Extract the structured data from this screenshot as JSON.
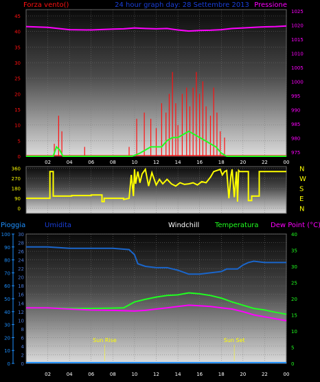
{
  "colors": {
    "red": "#ff1010",
    "green": "#20ff20",
    "magenta": "#ff00ff",
    "blue": "#1a66cc",
    "yellow": "#ffff00",
    "white": "#ffffff",
    "pioggia": "#1e90ff"
  },
  "chart_data": [
    {
      "type": "line",
      "panel": "wind-pressure",
      "header": {
        "left": "Forza vento()",
        "center": "24 hour graph day: 28 Settembre 2013",
        "right": "Pressione"
      },
      "x_tick_labels": [
        "02",
        "04",
        "06",
        "08",
        "10",
        "12",
        "14",
        "16",
        "18",
        "20",
        "22",
        "00"
      ],
      "y_left": {
        "ticks": [
          "0",
          "5",
          "10",
          "15",
          "20",
          "25",
          "30",
          "35",
          "40",
          "45"
        ],
        "range": [
          0,
          47
        ]
      },
      "y_right": {
        "ticks": [
          "975",
          "980",
          "985",
          "990",
          "995",
          "1000",
          "1005",
          "1010",
          "1015",
          "1020",
          "1025"
        ],
        "range": [
          973.5,
          1025.5
        ]
      },
      "x_range": [
        0,
        24
      ],
      "series": [
        {
          "color": "red",
          "axis": "left",
          "style": "bars",
          "x": [
            2.6,
            3.0,
            3.3,
            5.4,
            9.5,
            10.2,
            10.9,
            11.5,
            12.0,
            12.5,
            12.9,
            13.2,
            13.5,
            13.8,
            14.0,
            14.4,
            14.8,
            15.1,
            15.4,
            15.7,
            16.0,
            16.3,
            16.6,
            17.0,
            17.3,
            17.6,
            17.9,
            18.3
          ],
          "y": [
            4,
            13,
            8,
            3,
            3,
            12,
            14,
            12,
            9,
            17,
            14,
            20,
            27,
            17,
            10,
            20,
            22,
            16,
            22,
            27,
            20,
            24,
            16,
            13,
            22,
            14,
            8,
            6
          ]
        },
        {
          "color": "green",
          "axis": "left",
          "x": [
            0,
            2.5,
            2.8,
            3.1,
            3.4,
            9.8,
            10.5,
            11.5,
            12.5,
            13.0,
            13.5,
            14.0,
            14.5,
            15.0,
            15.5,
            16.0,
            16.5,
            17.0,
            17.5,
            18.0,
            18.5,
            19.0,
            24
          ],
          "y": [
            0,
            0,
            3,
            2,
            0,
            0,
            1,
            3,
            3,
            5,
            6,
            6,
            7,
            8,
            7,
            6,
            5,
            4,
            3,
            1,
            0,
            0,
            0
          ]
        },
        {
          "color": "magenta",
          "axis": "right",
          "x": [
            0,
            2,
            4,
            6,
            8,
            9,
            10,
            11,
            12,
            13,
            14,
            15,
            16,
            17,
            18,
            19,
            20,
            21,
            22,
            23,
            24
          ],
          "y": [
            1019.5,
            1019.2,
            1018.4,
            1018.3,
            1018.6,
            1018.7,
            1019.0,
            1018.8,
            1018.7,
            1018.8,
            1018.3,
            1017.9,
            1018.1,
            1018.2,
            1018.4,
            1018.8,
            1019.0,
            1019.2,
            1019.4,
            1019.5,
            1019.7
          ]
        }
      ]
    },
    {
      "type": "line",
      "panel": "wind-direction",
      "y_left": {
        "ticks": [
          "0",
          "90",
          "180",
          "270",
          "360"
        ],
        "range": [
          -45,
          375
        ]
      },
      "y_right": {
        "ticks": [
          "N",
          "E",
          "S",
          "W",
          "N"
        ]
      },
      "x_range": [
        0,
        24
      ],
      "series": [
        {
          "color": "yellow",
          "x": [
            0,
            2.2,
            2.2,
            2.5,
            2.5,
            4.2,
            4.2,
            6.0,
            6.0,
            7.0,
            7.0,
            7.2,
            7.2,
            9.0,
            9.0,
            9.5,
            9.7,
            9.9,
            10.0,
            10.1,
            10.3,
            10.5,
            10.7,
            11.0,
            11.3,
            11.6,
            12.0,
            12.3,
            12.6,
            13.0,
            13.4,
            13.8,
            14.2,
            14.6,
            15.0,
            15.4,
            15.8,
            16.2,
            16.6,
            17.0,
            17.3,
            17.6,
            17.9,
            18.1,
            18.3,
            18.5,
            18.7,
            18.9,
            19.0,
            19.2,
            19.4,
            19.5,
            19.6,
            19.7,
            20.5,
            20.5,
            20.8,
            20.8,
            21.5,
            21.5,
            24
          ],
          "y": [
            90,
            90,
            330,
            330,
            110,
            110,
            115,
            115,
            120,
            120,
            60,
            60,
            90,
            90,
            80,
            90,
            300,
            110,
            350,
            220,
            330,
            230,
            310,
            350,
            200,
            320,
            210,
            260,
            220,
            260,
            220,
            200,
            230,
            215,
            220,
            230,
            210,
            240,
            230,
            280,
            330,
            340,
            350,
            300,
            330,
            340,
            90,
            300,
            350,
            100,
            330,
            60,
            340,
            330,
            330,
            70,
            70,
            110,
            110,
            330,
            330
          ]
        }
      ]
    },
    {
      "type": "line",
      "panel": "temp-humidity",
      "header": {
        "pioggia": "Pioggia",
        "umidita": "Umidita",
        "windchill": "Windchill",
        "temperatura": "Temperatura",
        "dewpoint": "Dew Point (°C)"
      },
      "annotations": [
        {
          "label": "Sun Rise",
          "x": 7.25
        },
        {
          "label": "Sun Set",
          "x": 19.2
        }
      ],
      "x_tick_labels": [
        "02",
        "04",
        "06",
        "08",
        "10",
        "12",
        "14",
        "16",
        "18",
        "20",
        "22",
        "00"
      ],
      "y_outer": {
        "ticks": [
          "0",
          "10",
          "20",
          "30",
          "40",
          "50",
          "60",
          "70",
          "80",
          "90",
          "100"
        ],
        "range": [
          0,
          100
        ]
      },
      "y_inner": {
        "ticks": [
          "0",
          "2",
          "4",
          "6",
          "8",
          "10",
          "12",
          "14",
          "16",
          "18",
          "20",
          "22",
          "24",
          "26",
          "28",
          "30"
        ],
        "range": [
          0,
          30
        ]
      },
      "y_right": {
        "ticks": [
          "0",
          "5",
          "10",
          "15",
          "20",
          "25",
          "30",
          "35",
          "40"
        ],
        "range": [
          0,
          40
        ]
      },
      "x_range": [
        0,
        24
      ],
      "series": [
        {
          "color": "blue",
          "axis": "outer",
          "label": "umidita",
          "x": [
            0,
            2,
            4,
            6,
            8,
            9.5,
            10,
            10.3,
            11,
            12,
            13,
            14,
            15,
            16,
            17,
            18,
            18.5,
            19.5,
            20,
            20.5,
            21,
            22,
            23,
            24
          ],
          "y": [
            90,
            90,
            89,
            89,
            89,
            88,
            84,
            77,
            75,
            74,
            74,
            72,
            69,
            69,
            70,
            71,
            73,
            73,
            76,
            78,
            79,
            78,
            78,
            78
          ]
        },
        {
          "color": "green",
          "axis": "right",
          "label": "temperatura",
          "x": [
            0,
            2,
            4,
            6,
            8,
            9,
            10,
            11,
            12,
            13,
            14,
            15,
            16,
            17,
            18,
            19,
            20,
            21,
            22,
            23,
            24
          ],
          "y": [
            17.2,
            17.2,
            17.0,
            17.0,
            17.1,
            17.2,
            19.0,
            19.8,
            20.5,
            21.0,
            21.2,
            21.8,
            21.5,
            21.0,
            20.2,
            19.0,
            18.0,
            17.0,
            16.5,
            15.8,
            15.2
          ]
        },
        {
          "color": "magenta",
          "axis": "right",
          "label": "dew-point",
          "x": [
            0,
            2,
            4,
            6,
            8,
            9,
            10,
            11,
            12,
            13,
            14,
            15,
            16,
            17,
            18,
            19,
            20,
            21,
            22,
            23,
            24
          ],
          "y": [
            17.2,
            17.2,
            16.8,
            16.5,
            16.4,
            16.3,
            16.2,
            16.4,
            16.8,
            17.2,
            17.6,
            18.0,
            17.8,
            17.6,
            17.2,
            16.8,
            16.0,
            15.0,
            14.4,
            13.8,
            13.2
          ]
        },
        {
          "color": "pioggia",
          "axis": "outer",
          "label": "pioggia",
          "x": [
            0,
            24
          ],
          "y": [
            0.6,
            0.6
          ]
        }
      ]
    }
  ]
}
